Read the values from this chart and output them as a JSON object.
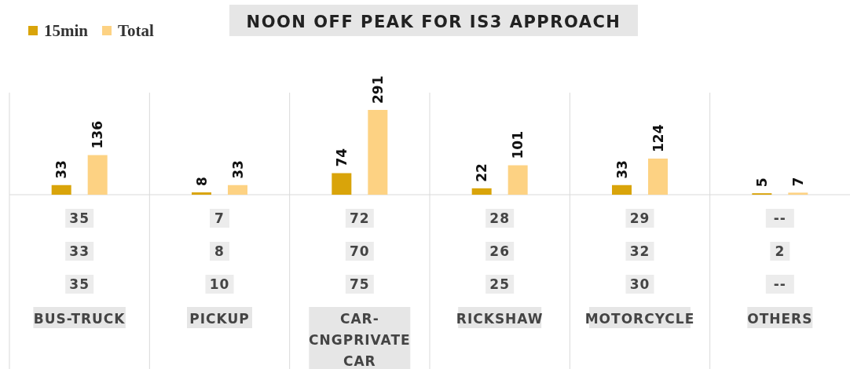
{
  "chart_data": {
    "type": "bar",
    "title": "NOON OFF PEAK FOR IS3 APPROACH",
    "categories": [
      "BUS-TRUCK",
      "PICKUP",
      "CAR-CNGPRIVATE CAR",
      "RICKSHAW",
      "MOTORCYCLE",
      "OTHERS"
    ],
    "series": [
      {
        "name": "15min",
        "color": "#d9a40a",
        "values": [
          33,
          8,
          74,
          22,
          33,
          5
        ]
      },
      {
        "name": "Total",
        "color": "#fdd283",
        "values": [
          136,
          33,
          291,
          101,
          124,
          7
        ]
      }
    ],
    "data_labels": true,
    "legend": "top left",
    "grid": "x",
    "annotations": [
      "35",
      "7",
      "72",
      "28",
      "29",
      "--",
      "33",
      "8",
      "70",
      "26",
      "32",
      "2",
      "35",
      "10",
      "75",
      "25",
      "30",
      "--"
    ]
  }
}
